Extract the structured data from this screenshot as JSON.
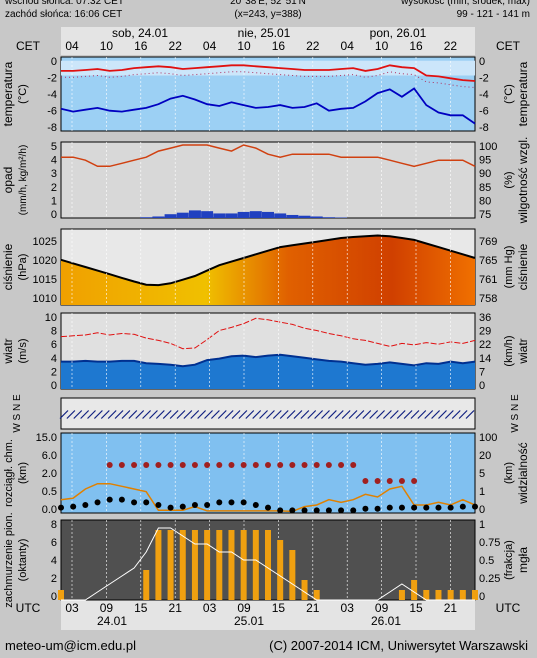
{
  "header": {
    "sunrise": "wschód słońca: 07:32 CET",
    "sunset": "zachód słońca: 16:06 CET",
    "coords": "20°38'E, 52°51'N",
    "grid": "(x=243, y=388)",
    "height_title": "wysokość (min, środek, max)",
    "height_values": "99 - 121 - 141 m"
  },
  "timezone_top": "CET",
  "timezone_bottom": "UTC",
  "days_top": [
    "sob, 24.01",
    "nie, 25.01",
    "pon, 26.01"
  ],
  "hours_top": [
    "04",
    "10",
    "16",
    "22",
    "04",
    "10",
    "16",
    "22",
    "04",
    "10",
    "16",
    "22"
  ],
  "hours_bottom": [
    "03",
    "09",
    "15",
    "21",
    "03",
    "09",
    "15",
    "21",
    "03",
    "09",
    "15",
    "21"
  ],
  "days_bottom": [
    "24.01",
    "25.01",
    "26.01"
  ],
  "footer": {
    "email": "meteo-um@icm.edu.pl",
    "copyright": "(C) 2007-2014 ICM, Uniwersytet Warszawski"
  },
  "colors": {
    "red_line": "#e01010",
    "blue_line": "#0000c0",
    "precip": "#2040c0",
    "pressure_line": "#000000",
    "humidity_line": "#d04010",
    "cloud_bar": "#f0a010",
    "sky": "#80c0f0"
  },
  "chart_data": [
    {
      "id": "temperature",
      "type": "line",
      "ylabel_left": "temperatura",
      "yunit_left": "(°C)",
      "ylabel_right": "temperatura",
      "yunit_right": "(°C)",
      "ylim": [
        -8,
        0
      ],
      "ticks": [
        "0",
        "-2",
        "-4",
        "-6",
        "-8"
      ],
      "series": [
        {
          "values": [
            -1.5,
            -1.5,
            -1.4,
            -1.3,
            -1.5,
            -1.4,
            -1.2,
            -1.1,
            -1.0,
            -1.1,
            -1.3,
            -1.2,
            -1.1,
            -1.0,
            -0.9,
            -0.9,
            -1.0,
            -1.1,
            -1.2,
            -1.3,
            -1.4,
            -1.4,
            -1.4,
            -1.3,
            -1.2,
            -1.5,
            -1.3,
            -0.9,
            -1.1,
            -1.2,
            -2.0,
            -2.1,
            -2.3,
            -2.5,
            -2.6
          ]
        },
        {
          "values": [
            -5.6,
            -5.9,
            -5.7,
            -5.5,
            -5.8,
            -5.9,
            -5.7,
            -5.5,
            -5.1,
            -4.5,
            -4.2,
            -4.6,
            -5.1,
            -5.3,
            -4.9,
            -5.2,
            -5.5,
            -5.4,
            -5.2,
            -5.5,
            -5.4,
            -5.0,
            -5.8,
            -5.6,
            -5.5,
            -4.8,
            -3.9,
            -3.5,
            -4.3,
            -3.4,
            -5.2,
            -6.0,
            -6.3,
            -6.3,
            -7.2
          ]
        }
      ]
    },
    {
      "id": "precip-humidity",
      "type": "bar",
      "ylabel_left": "opad",
      "yunit_left": "(mm/h, kg/m²/h)",
      "ylabel_right": "wilgotność wzgl.",
      "yunit_right": "(%)",
      "ylim": [
        0,
        5
      ],
      "ticks_left": [
        "0",
        "1",
        "2",
        "3",
        "4",
        "5"
      ],
      "ticks_right": [
        "75",
        "80",
        "85",
        "90",
        "95",
        "100"
      ],
      "precip": [
        0,
        0,
        0,
        0,
        0,
        0,
        0,
        0.05,
        0.1,
        0.25,
        0.35,
        0.5,
        0.45,
        0.3,
        0.3,
        0.4,
        0.45,
        0.4,
        0.3,
        0.2,
        0.15,
        0.1,
        0.05,
        0.03,
        0,
        0,
        0,
        0,
        0,
        0,
        0,
        0,
        0,
        0,
        0
      ],
      "humidity": [
        95,
        95,
        94,
        92,
        92,
        93,
        94,
        95,
        97,
        98,
        99,
        99,
        99,
        98,
        97,
        99,
        98,
        96,
        95,
        96,
        96,
        96,
        96,
        95,
        95,
        95,
        95,
        94,
        93,
        92,
        93,
        94,
        94,
        94,
        92
      ]
    },
    {
      "id": "pressure",
      "type": "area",
      "ylabel_left": "ciśnienie",
      "yunit_left": "(hPa)",
      "ylabel_right": "ciśnienie",
      "yunit_right": "(mm Hg)",
      "ylim": [
        1007,
        1028
      ],
      "ticks_left": [
        "1025",
        "1020",
        "1015",
        "1010"
      ],
      "ticks_right": [
        "769",
        "765",
        "761",
        "758"
      ],
      "values": [
        1019.5,
        1018.5,
        1017.5,
        1016.5,
        1015.5,
        1014.5,
        1013.5,
        1012.6,
        1012.5,
        1013,
        1014,
        1015,
        1016.5,
        1018,
        1019,
        1020,
        1021,
        1022,
        1023,
        1023.5,
        1024,
        1024.5,
        1025,
        1025.5,
        1025.8,
        1026,
        1026.2,
        1026,
        1025.5,
        1025,
        1024,
        1023,
        1022,
        1021,
        1020
      ]
    },
    {
      "id": "wind",
      "type": "area",
      "ylabel_left": "wiatr",
      "yunit_left": "(m/s)",
      "ylabel_right": "wiatr",
      "yunit_right": "(km/h)",
      "ylim": [
        0,
        10
      ],
      "ticks_left": [
        "0",
        "2",
        "4",
        "6",
        "8",
        "10"
      ],
      "ticks_right": [
        "0",
        "7",
        "14",
        "22",
        "29",
        "36"
      ],
      "mean": [
        3.6,
        3.6,
        3.7,
        3.6,
        3.6,
        3.7,
        3.7,
        3.4,
        3.3,
        3.2,
        3.0,
        3.2,
        3.8,
        4.0,
        4.3,
        4.4,
        4.2,
        4.4,
        4.5,
        4.3,
        4.1,
        3.9,
        3.7,
        3.6,
        3.4,
        3.2,
        3.3,
        3.5,
        3.3,
        3.1,
        3.4,
        3.3,
        3.6,
        3.4,
        3.6
      ],
      "gust": [
        6.9,
        7.0,
        7.1,
        7.4,
        7.1,
        7.3,
        7.2,
        6.7,
        6.4,
        6.0,
        5.3,
        5.4,
        6.5,
        7.7,
        8.1,
        8.6,
        9.3,
        9.1,
        8.8,
        8.5,
        8.0,
        7.7,
        7.3,
        7.0,
        6.6,
        6.4,
        6.0,
        5.6,
        6.0,
        5.8,
        6.1,
        5.9,
        6.2,
        6.0,
        6.4
      ]
    },
    {
      "id": "wind-direction",
      "type": "scatter",
      "ylabel_left": "W S N E",
      "ylabel_right": "W S N E"
    },
    {
      "id": "visibility",
      "type": "scatter",
      "ylabel_left": "rozciągł. chm.",
      "yunit_left": "(km)",
      "ylabel_right": "widzialność",
      "yunit_right": "(km)",
      "ylim": [
        0,
        15
      ],
      "ticks_left": [
        "15.0",
        "6.0",
        "2.0",
        "0.5",
        "0.0"
      ],
      "ticks_right": [
        "100",
        "20",
        "5",
        "1",
        "0"
      ],
      "visibility": [
        2.5,
        2.8,
        4.5,
        5.5,
        5.5,
        5.0,
        4.5,
        4.0,
        0.5,
        0.5,
        0.5,
        1.2,
        0.4,
        0.4,
        0.4,
        0.4,
        0.4,
        0.4,
        0.4,
        0.3,
        1.2,
        1.5,
        2.5,
        2.0,
        2.5,
        3.5,
        3.0,
        4.5,
        5.0,
        1.5,
        1.5,
        2.0,
        1.5,
        2.5,
        1.5
      ],
      "dots_high": [
        null,
        null,
        null,
        null,
        9,
        9,
        9,
        9,
        9,
        9,
        9,
        9,
        9,
        9,
        9,
        9,
        9,
        9,
        9,
        9,
        9,
        9,
        9,
        9,
        9,
        6,
        6,
        6,
        6,
        6,
        null,
        null,
        null,
        null,
        null
      ],
      "dots_mid": [
        1.0,
        1.2,
        1.5,
        2.0,
        2.5,
        2.5,
        2.0,
        2.0,
        1.5,
        1.0,
        1.2,
        1.5,
        1.5,
        2.0,
        2.0,
        2.0,
        1.5,
        1.0,
        0.5,
        0.5,
        0.5,
        0.5,
        0.5,
        0.5,
        0.5,
        0.8,
        0.8,
        1.0,
        1.0,
        1.0,
        1.0,
        1.0,
        1.0,
        1.2,
        1.2
      ]
    },
    {
      "id": "cloud-cover",
      "type": "bar",
      "ylabel_left": "zachmurzenie pion.",
      "yunit_left": "(oktanty)",
      "ylabel_right": "mgła",
      "yunit_right": "(frakcja)",
      "ylim": [
        0,
        8
      ],
      "ticks_left": [
        "8",
        "6",
        "4",
        "2",
        "0"
      ],
      "ticks_right": [
        "1",
        "0.75",
        "0.5",
        "0.25",
        "0"
      ],
      "low_cloud": [
        1,
        0,
        0,
        0,
        0,
        0,
        0,
        3,
        7,
        7,
        7,
        7,
        7,
        7,
        7,
        7,
        7,
        7,
        6,
        5,
        2,
        1,
        0,
        0,
        0,
        0,
        0,
        0,
        1,
        2,
        1,
        1,
        1,
        1,
        1
      ],
      "fog": [
        0,
        0,
        0,
        0.1,
        0.2,
        0.3,
        0.4,
        0.6,
        0.9,
        0.9,
        0.8,
        0.7,
        0.7,
        0.6,
        0.6,
        0.5,
        0.5,
        0.4,
        0.3,
        0.2,
        0.1,
        0,
        0,
        0,
        0,
        0,
        0,
        0.1,
        0.2,
        0.1,
        0,
        0,
        0,
        0,
        0
      ]
    }
  ]
}
